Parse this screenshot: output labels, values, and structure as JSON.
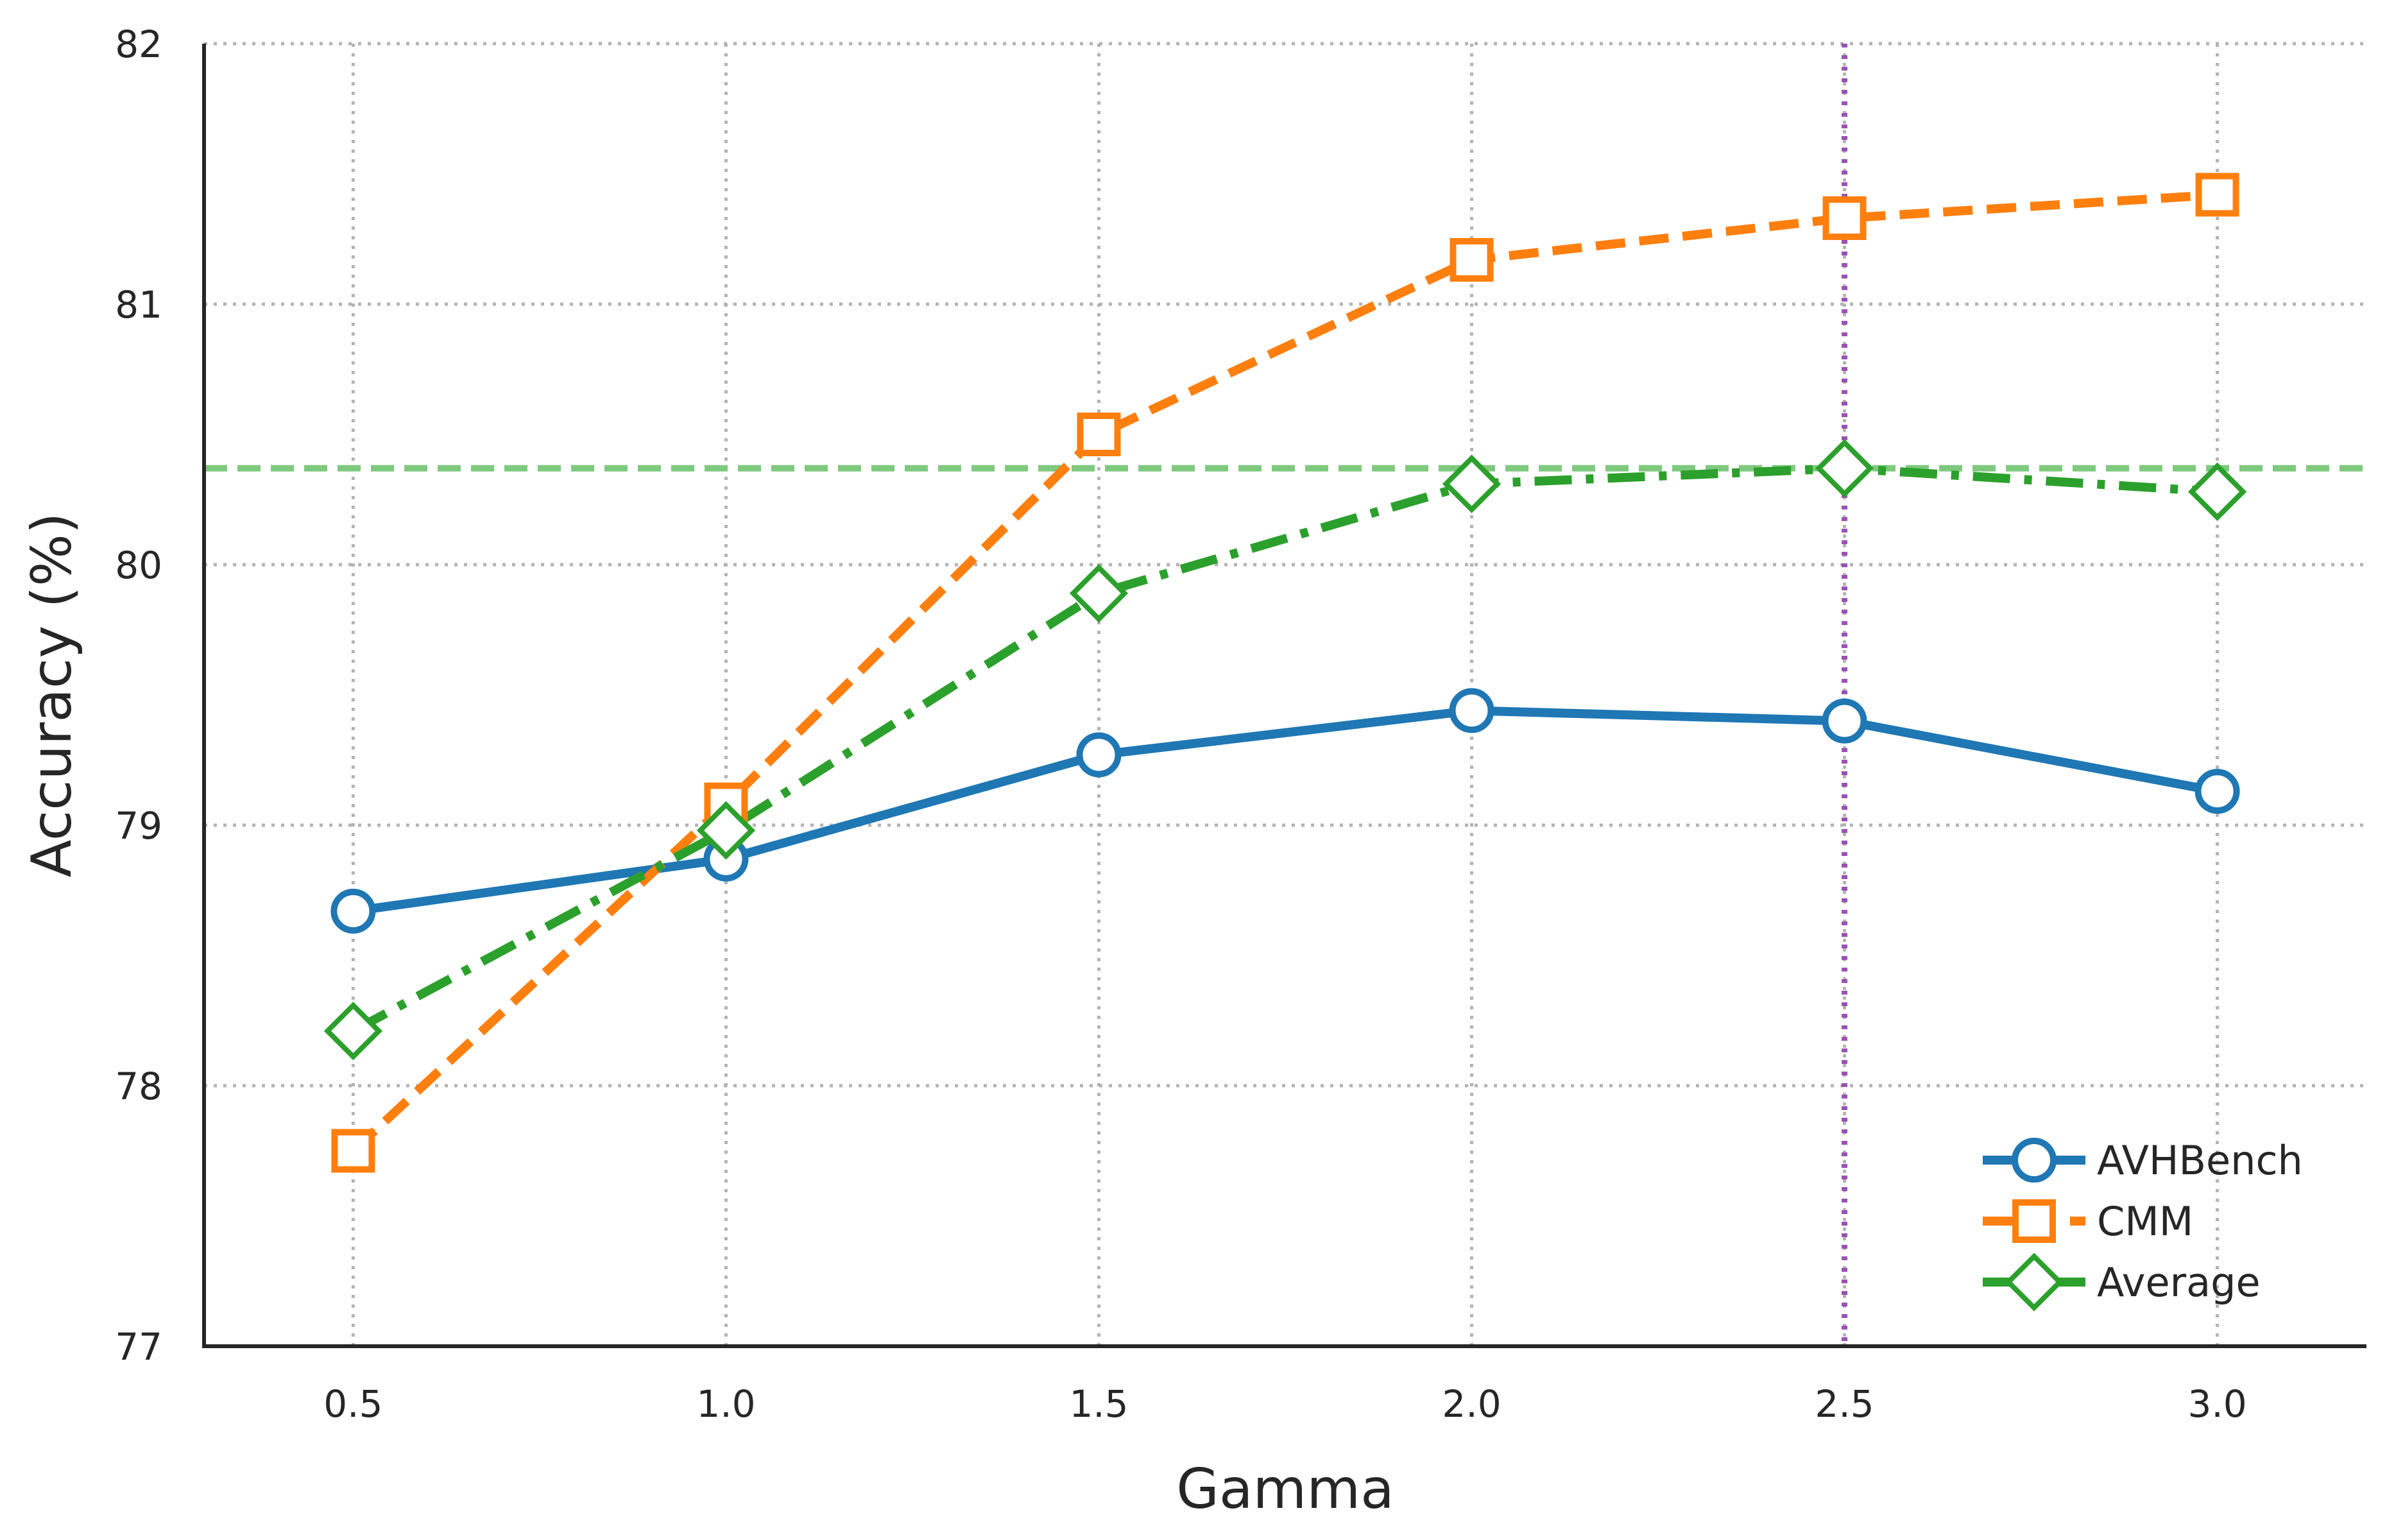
{
  "chart_data": {
    "type": "line",
    "xlabel": "Gamma",
    "ylabel": "Accuracy (%)",
    "x": [
      0.5,
      1.0,
      1.5,
      2.0,
      2.5,
      3.0
    ],
    "x_tick_labels": [
      "0.5",
      "1.0",
      "1.5",
      "2.0",
      "2.5",
      "3.0"
    ],
    "xlim": [
      0.3,
      3.2
    ],
    "ylim": [
      77,
      82
    ],
    "y_ticks": [
      77,
      78,
      79,
      80,
      81,
      82
    ],
    "y_tick_labels": [
      "77",
      "78",
      "79",
      "80",
      "81",
      "82"
    ],
    "grid": true,
    "legend_position": "lower right",
    "series": [
      {
        "name": "AVHBench",
        "values": [
          78.67,
          78.87,
          79.27,
          79.44,
          79.4,
          79.13
        ],
        "color": "#1f77b4",
        "marker": "circle",
        "line_style": "solid"
      },
      {
        "name": "CMM",
        "values": [
          77.75,
          79.08,
          80.5,
          81.17,
          81.33,
          81.42
        ],
        "color": "#ff7f0e",
        "marker": "square",
        "line_style": "dashed"
      },
      {
        "name": "Average",
        "values": [
          78.21,
          78.98,
          79.89,
          80.31,
          80.37,
          80.28
        ],
        "color": "#2ca02c",
        "marker": "diamond",
        "line_style": "dashdot"
      }
    ],
    "reference_lines": [
      {
        "orientation": "horizontal",
        "value": 80.37,
        "color": "#7fc97f",
        "line_style": "dashed"
      },
      {
        "orientation": "vertical",
        "value": 2.5,
        "color": "#9b4fb8",
        "line_style": "dotted"
      }
    ]
  }
}
